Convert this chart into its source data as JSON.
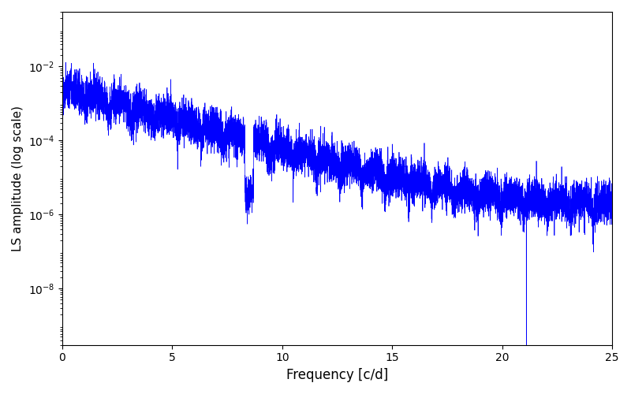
{
  "xlabel": "Frequency [c/d]",
  "ylabel": "LS amplitude (log scale)",
  "xlim": [
    0,
    25
  ],
  "ylim": [
    3e-10,
    0.3
  ],
  "line_color": "#0000ff",
  "line_width": 0.5,
  "background_color": "#ffffff",
  "yticks": [
    1e-08,
    1e-06,
    0.0001,
    0.01
  ],
  "xticks": [
    0,
    5,
    10,
    15,
    20,
    25
  ],
  "num_points": 10000,
  "seed": 77,
  "envelope_amp": 0.003,
  "envelope_decay": 0.38,
  "noise_floor": 2e-06,
  "alias_freq": 1.05,
  "spike_modulation": 4.0
}
